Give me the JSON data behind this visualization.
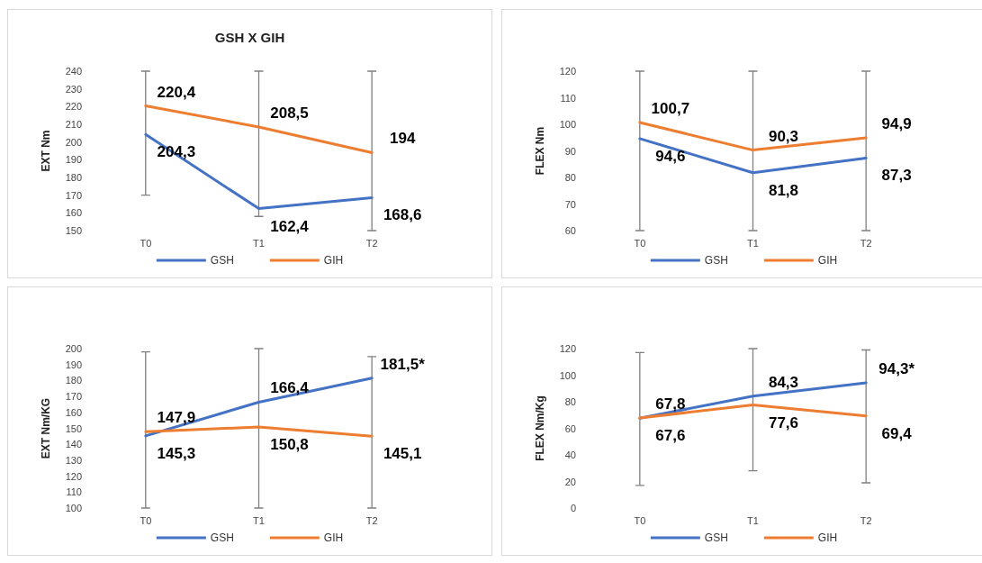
{
  "chart_data": [
    {
      "type": "line",
      "title": "GSH X GIH",
      "ylabel": "EXT Nm",
      "categories": [
        "T0",
        "T1",
        "T2"
      ],
      "ylim": [
        150,
        240
      ],
      "yticks": [
        150,
        160,
        170,
        180,
        190,
        200,
        210,
        220,
        230,
        240
      ],
      "grid": false,
      "legend": "bottom",
      "marker": "none",
      "series": [
        {
          "name": "GSH",
          "color": "#4472c4",
          "values": [
            204.3,
            162.4,
            168.6
          ],
          "value_labels": [
            "204,3",
            "162,4",
            "168,6"
          ],
          "errors": [
            [
              170,
              240
            ],
            [
              158,
              240
            ],
            [
              150,
              240
            ]
          ]
        },
        {
          "name": "GIH",
          "color": "#ed7d31",
          "values": [
            220.4,
            208.5,
            194
          ],
          "value_labels": [
            "220,4",
            "208,5",
            "194"
          ]
        }
      ]
    },
    {
      "type": "line",
      "ylabel": "FLEX Nm",
      "categories": [
        "T0",
        "T1",
        "T2"
      ],
      "ylim": [
        60,
        120
      ],
      "yticks": [
        60,
        70,
        80,
        90,
        100,
        110,
        120
      ],
      "grid": false,
      "legend": "bottom",
      "marker": "none",
      "series": [
        {
          "name": "GSH",
          "color": "#4472c4",
          "values": [
            94.6,
            81.8,
            87.3
          ],
          "value_labels": [
            "94,6",
            "81,8",
            "87,3"
          ],
          "errors": [
            [
              60,
              120
            ],
            [
              60,
              120
            ],
            [
              60,
              120
            ]
          ]
        },
        {
          "name": "GIH",
          "color": "#ed7d31",
          "values": [
            100.7,
            90.3,
            94.9
          ],
          "value_labels": [
            "100,7",
            "90,3",
            "94,9"
          ]
        }
      ]
    },
    {
      "type": "line",
      "ylabel": "EXT Nm/KG",
      "categories": [
        "T0",
        "T1",
        "T2"
      ],
      "ylim": [
        100,
        200
      ],
      "yticks": [
        100,
        110,
        120,
        130,
        140,
        150,
        160,
        170,
        180,
        190,
        200
      ],
      "grid": false,
      "legend": "bottom",
      "marker": "none",
      "series": [
        {
          "name": "GSH",
          "color": "#4472c4",
          "values": [
            145.3,
            166.4,
            181.5
          ],
          "value_labels": [
            "145,3",
            "166,4",
            "181,5*"
          ],
          "errors": [
            [
              100,
              198
            ],
            [
              100,
              200
            ],
            [
              100,
              195
            ]
          ]
        },
        {
          "name": "GIH",
          "color": "#ed7d31",
          "values": [
            147.9,
            150.8,
            145.1
          ],
          "value_labels": [
            "147,9",
            "150,8",
            "145,1"
          ]
        }
      ]
    },
    {
      "type": "line",
      "ylabel": "FLEX Nm/Kg",
      "categories": [
        "T0",
        "T1",
        "T2"
      ],
      "ylim": [
        0,
        120
      ],
      "yticks": [
        0,
        20,
        40,
        60,
        80,
        100,
        120
      ],
      "grid": false,
      "legend": "bottom",
      "marker": "none",
      "series": [
        {
          "name": "GSH",
          "color": "#4472c4",
          "values": [
            67.6,
            84.3,
            94.3
          ],
          "value_labels": [
            "67,6",
            "84,3",
            "94,3*"
          ],
          "errors": [
            [
              17,
              117
            ],
            [
              28,
              120
            ],
            [
              19,
              119
            ]
          ]
        },
        {
          "name": "GIH",
          "color": "#ed7d31",
          "values": [
            67.8,
            77.6,
            69.4
          ],
          "value_labels": [
            "67,8",
            "77,6",
            "69,4"
          ]
        }
      ]
    }
  ]
}
